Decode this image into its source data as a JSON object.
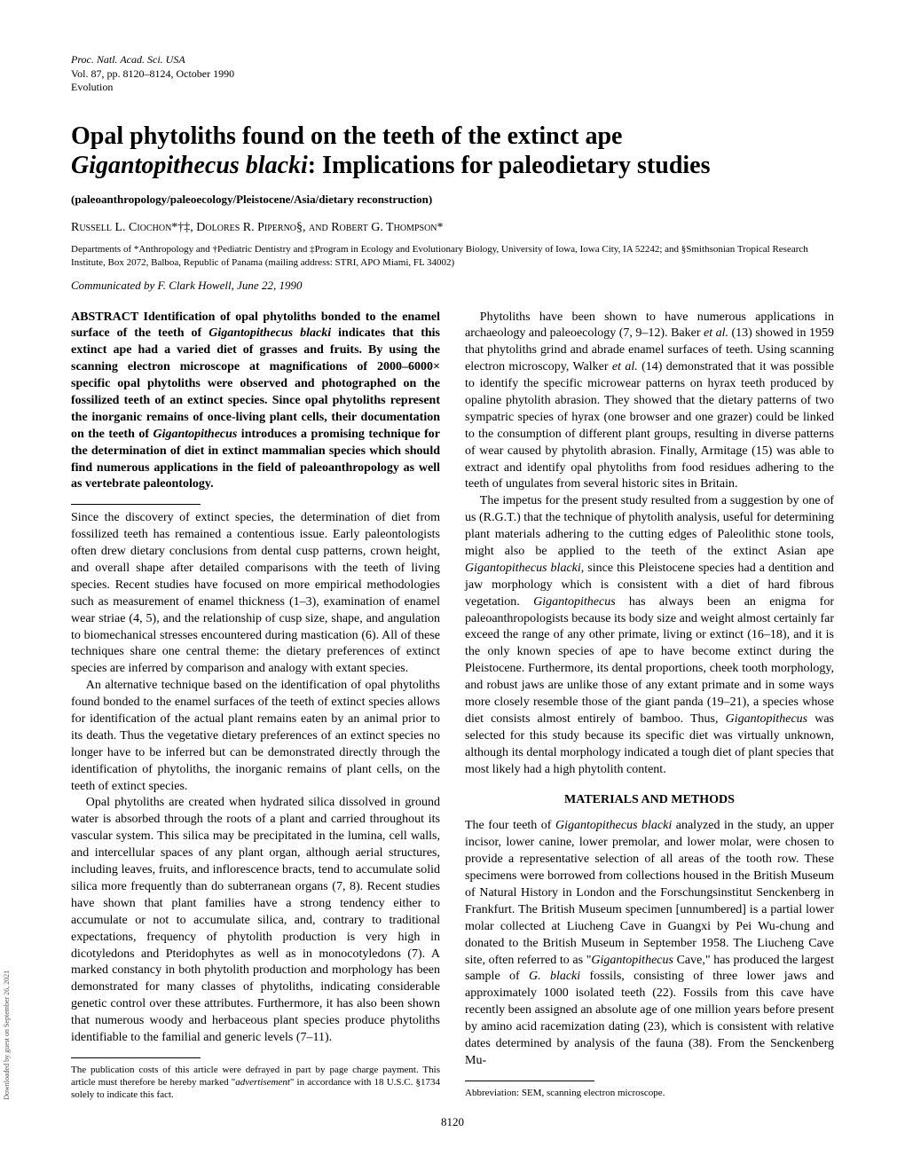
{
  "header": {
    "line1": "Proc. Natl. Acad. Sci. USA",
    "line2": "Vol. 87, pp. 8120–8124, October 1990",
    "line3": "Evolution"
  },
  "title": {
    "line1": "Opal phytoliths found on the teeth of the extinct ape",
    "line2_italic": "Gigantopithecus blacki",
    "line2_rest": ": Implications for paleodietary studies"
  },
  "subtitle": "(paleoanthropology/paleoecology/Pleistocene/Asia/dietary reconstruction)",
  "authors": "Russell L. Ciochon*†‡, Dolores R. Piperno§, and Robert G. Thompson*",
  "affiliations": "Departments of *Anthropology and †Pediatric Dentistry and ‡Program in Ecology and Evolutionary Biology, University of Iowa, Iowa City, IA 52242; and §Smithsonian Tropical Research Institute, Box 2072, Balboa, Republic of Panama (mailing address: STRI, APO Miami, FL 34002)",
  "communicated": "Communicated by F. Clark Howell, June 22, 1990",
  "abstract": {
    "label": "ABSTRACT",
    "text_before_italic1": "    Identification of opal phytoliths bonded to the enamel surface of the teeth of ",
    "italic1": "Gigantopithecus blacki",
    "text_middle": " indicates that this extinct ape had a varied diet of grasses and fruits. By using the scanning electron microscope at magnifications of 2000–6000× specific opal phytoliths were observed and photographed on the fossilized teeth of an extinct species. Since opal phytoliths represent the inorganic remains of once-living plant cells, their documentation on the teeth of ",
    "italic2": "Gigantopithecus",
    "text_end": " introduces a promising technique for the determination of diet in extinct mammalian species which should find numerous applications in the field of paleoanthropology as well as vertebrate paleontology."
  },
  "left_col": {
    "p1": "Since the discovery of extinct species, the determination of diet from fossilized teeth has remained a contentious issue. Early paleontologists often drew dietary conclusions from dental cusp patterns, crown height, and overall shape after detailed comparisons with the teeth of living species. Recent studies have focused on more empirical methodologies such as measurement of enamel thickness (1–3), examination of enamel wear striae (4, 5), and the relationship of cusp size, shape, and angulation to biomechanical stresses encountered during mastication (6). All of these techniques share one central theme: the dietary preferences of extinct species are inferred by comparison and analogy with extant species.",
    "p2": "An alternative technique based on the identification of opal phytoliths found bonded to the enamel surfaces of the teeth of extinct species allows for identification of the actual plant remains eaten by an animal prior to its death. Thus the vegetative dietary preferences of an extinct species no longer have to be inferred but can be demonstrated directly through the identification of phytoliths, the inorganic remains of plant cells, on the teeth of extinct species.",
    "p3": "Opal phytoliths are created when hydrated silica dissolved in ground water is absorbed through the roots of a plant and carried throughout its vascular system. This silica may be precipitated in the lumina, cell walls, and intercellular spaces of any plant organ, although aerial structures, including leaves, fruits, and inflorescence bracts, tend to accumulate solid silica more frequently than do subterranean organs (7, 8). Recent studies have shown that plant families have a strong tendency either to accumulate or not to accumulate silica, and, contrary to traditional expectations, frequency of phytolith production is very high in dicotyledons and Pteridophytes as well as in monocotyledons (7). A marked constancy in both phytolith production and morphology has been demonstrated for many classes of phytoliths, indicating considerable genetic control over these attributes. Furthermore, it has also been shown that numerous woody and herbaceous plant species produce phytoliths identifiable to the familial and generic levels (7–11)."
  },
  "right_col": {
    "p1_a": "Phytoliths have been shown to have numerous applications in archaeology and paleoecology (7, 9–12). Baker ",
    "p1_italic1": "et al.",
    "p1_b": " (13) showed in 1959 that phytoliths grind and abrade enamel surfaces of teeth. Using scanning electron microscopy, Walker ",
    "p1_italic2": "et al.",
    "p1_c": " (14) demonstrated that it was possible to identify the specific microwear patterns on hyrax teeth produced by opaline phytolith abrasion. They showed that the dietary patterns of two sympatric species of hyrax (one browser and one grazer) could be linked to the consumption of different plant groups, resulting in diverse patterns of wear caused by phytolith abrasion. Finally, Armitage (15) was able to extract and identify opal phytoliths from food residues adhering to the teeth of ungulates from several historic sites in Britain.",
    "p2_a": "The impetus for the present study resulted from a suggestion by one of us (R.G.T.) that the technique of phytolith analysis, useful for determining plant materials adhering to the cutting edges of Paleolithic stone tools, might also be applied to the teeth of the extinct Asian ape ",
    "p2_italic1": "Gigantopithecus blacki",
    "p2_b": ", since this Pleistocene species had a dentition and jaw morphology which is consistent with a diet of hard fibrous vegetation. ",
    "p2_italic2": "Gigantopithecus",
    "p2_c": " has always been an enigma for paleoanthropologists because its body size and weight almost certainly far exceed the range of any other primate, living or extinct (16–18), and it is the only known species of ape to have become extinct during the Pleistocene. Furthermore, its dental proportions, cheek tooth morphology, and robust jaws are unlike those of any extant primate and in some ways more closely resemble those of the giant panda (19–21), a species whose diet consists almost entirely of bamboo. Thus, ",
    "p2_italic3": "Gigantopithecus",
    "p2_d": " was selected for this study because its specific diet was virtually unknown, although its dental morphology indicated a tough diet of plant species that most likely had a high phytolith content.",
    "section_head": "MATERIALS AND METHODS",
    "p3_a": "The four teeth of ",
    "p3_italic1": "Gigantopithecus blacki",
    "p3_b": " analyzed in the study, an upper incisor, lower canine, lower premolar, and lower molar, were chosen to provide a representative selection of all areas of the tooth row. These specimens were borrowed from collections housed in the British Museum of Natural History in London and the Forschungsinstitut Senckenberg in Frankfurt. The British Museum specimen [unnumbered] is a partial lower molar collected at Liucheng Cave in Guangxi by Pei Wu-chung and donated to the British Museum in September 1958. The Liucheng Cave site, often referred to as \"",
    "p3_italic2": "Gigantopithecus",
    "p3_c": " Cave,\" has produced the largest sample of ",
    "p3_italic3": "G. blacki",
    "p3_d": " fossils, consisting of three lower jaws and approximately 1000 isolated teeth (22). Fossils from this cave have recently been assigned an absolute age of one million years before present by amino acid racemization dating (23), which is consistent with relative dates determined by analysis of the fauna (38). From the Senckenberg Mu-"
  },
  "footnote_left_a": "The publication costs of this article were defrayed in part by page charge payment. This article must therefore be hereby marked \"",
  "footnote_left_italic": "advertisement",
  "footnote_left_b": "\" in accordance with 18 U.S.C. §1734 solely to indicate this fact.",
  "footnote_right": "Abbreviation: SEM, scanning electron microscope.",
  "page_number": "8120",
  "sidebar": "Downloaded by guest on September 26, 2021"
}
